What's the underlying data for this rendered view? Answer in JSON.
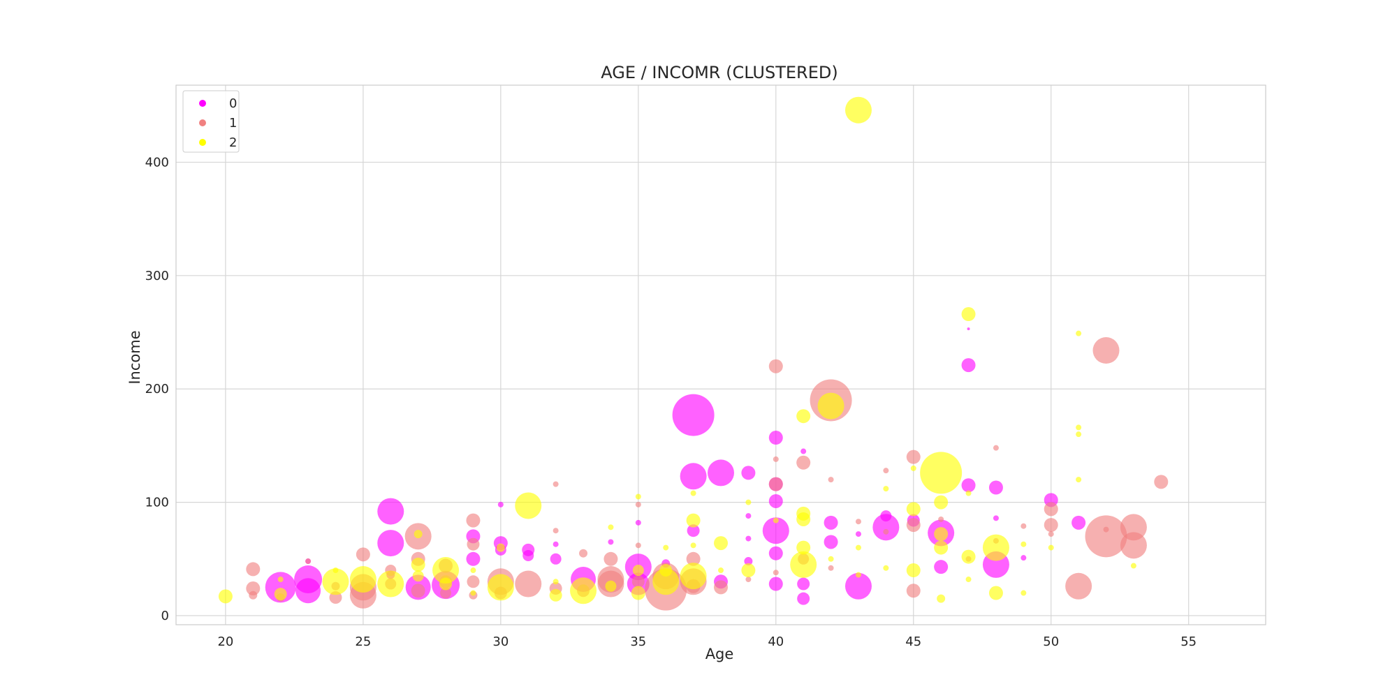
{
  "chart_data": {
    "type": "scatter",
    "title": "AGE / INCOMR (CLUSTERED)",
    "xlabel": "Age",
    "ylabel": "Income",
    "xlim": [
      18.2,
      57.8
    ],
    "ylim": [
      -8,
      468
    ],
    "xticks": [
      20,
      25,
      30,
      35,
      40,
      45,
      50,
      55
    ],
    "yticks": [
      0,
      100,
      200,
      300,
      400
    ],
    "grid": true,
    "legend_position": "top-left",
    "series": [
      {
        "name": "0",
        "color": "#ff00ff",
        "points": [
          {
            "x": 22,
            "y": 25,
            "size": 22
          },
          {
            "x": 23,
            "y": 32,
            "size": 20
          },
          {
            "x": 23,
            "y": 22,
            "size": 18
          },
          {
            "x": 23,
            "y": 48,
            "size": 4
          },
          {
            "x": 26,
            "y": 92,
            "size": 19
          },
          {
            "x": 26,
            "y": 64,
            "size": 19
          },
          {
            "x": 26,
            "y": 36,
            "size": 6
          },
          {
            "x": 27,
            "y": 25,
            "size": 18
          },
          {
            "x": 28,
            "y": 27,
            "size": 20
          },
          {
            "x": 29,
            "y": 70,
            "size": 10
          },
          {
            "x": 29,
            "y": 50,
            "size": 10
          },
          {
            "x": 30,
            "y": 98,
            "size": 4
          },
          {
            "x": 30,
            "y": 64,
            "size": 10
          },
          {
            "x": 30,
            "y": 58,
            "size": 8
          },
          {
            "x": 31,
            "y": 58,
            "size": 9
          },
          {
            "x": 31,
            "y": 53,
            "size": 8
          },
          {
            "x": 32,
            "y": 63,
            "size": 4
          },
          {
            "x": 32,
            "y": 50,
            "size": 8
          },
          {
            "x": 33,
            "y": 32,
            "size": 18
          },
          {
            "x": 34,
            "y": 65,
            "size": 4
          },
          {
            "x": 35,
            "y": 43,
            "size": 19
          },
          {
            "x": 35,
            "y": 82,
            "size": 4
          },
          {
            "x": 35,
            "y": 28,
            "size": 16
          },
          {
            "x": 36,
            "y": 46,
            "size": 6
          },
          {
            "x": 37,
            "y": 177,
            "size": 30
          },
          {
            "x": 37,
            "y": 123,
            "size": 19
          },
          {
            "x": 37,
            "y": 75,
            "size": 9
          },
          {
            "x": 38,
            "y": 126,
            "size": 19
          },
          {
            "x": 38,
            "y": 30,
            "size": 10
          },
          {
            "x": 39,
            "y": 126,
            "size": 10
          },
          {
            "x": 39,
            "y": 88,
            "size": 4
          },
          {
            "x": 39,
            "y": 68,
            "size": 4
          },
          {
            "x": 39,
            "y": 48,
            "size": 6
          },
          {
            "x": 40,
            "y": 157,
            "size": 10
          },
          {
            "x": 40,
            "y": 116,
            "size": 10
          },
          {
            "x": 40,
            "y": 101,
            "size": 10
          },
          {
            "x": 40,
            "y": 75,
            "size": 19
          },
          {
            "x": 40,
            "y": 55,
            "size": 10
          },
          {
            "x": 40,
            "y": 28,
            "size": 10
          },
          {
            "x": 41,
            "y": 145,
            "size": 4
          },
          {
            "x": 41,
            "y": 28,
            "size": 9
          },
          {
            "x": 41,
            "y": 15,
            "size": 9
          },
          {
            "x": 42,
            "y": 82,
            "size": 10
          },
          {
            "x": 42,
            "y": 65,
            "size": 10
          },
          {
            "x": 43,
            "y": 26,
            "size": 19
          },
          {
            "x": 43,
            "y": 72,
            "size": 4
          },
          {
            "x": 44,
            "y": 78,
            "size": 19
          },
          {
            "x": 44,
            "y": 88,
            "size": 8
          },
          {
            "x": 45,
            "y": 84,
            "size": 9
          },
          {
            "x": 46,
            "y": 73,
            "size": 19
          },
          {
            "x": 46,
            "y": 43,
            "size": 10
          },
          {
            "x": 47,
            "y": 221,
            "size": 10
          },
          {
            "x": 47,
            "y": 115,
            "size": 10
          },
          {
            "x": 47,
            "y": 253,
            "size": 2
          },
          {
            "x": 48,
            "y": 113,
            "size": 10
          },
          {
            "x": 48,
            "y": 45,
            "size": 19
          },
          {
            "x": 48,
            "y": 86,
            "size": 4
          },
          {
            "x": 49,
            "y": 51,
            "size": 4
          },
          {
            "x": 50,
            "y": 102,
            "size": 10
          },
          {
            "x": 51,
            "y": 82,
            "size": 10
          }
        ]
      },
      {
        "name": "1",
        "color": "#f08080",
        "points": [
          {
            "x": 21,
            "y": 41,
            "size": 10
          },
          {
            "x": 21,
            "y": 24,
            "size": 10
          },
          {
            "x": 21,
            "y": 18,
            "size": 6
          },
          {
            "x": 22,
            "y": 16,
            "size": 6
          },
          {
            "x": 23,
            "y": 48,
            "size": 4
          },
          {
            "x": 24,
            "y": 16,
            "size": 9
          },
          {
            "x": 24,
            "y": 26,
            "size": 6
          },
          {
            "x": 25,
            "y": 54,
            "size": 10
          },
          {
            "x": 25,
            "y": 25,
            "size": 19
          },
          {
            "x": 25,
            "y": 18,
            "size": 19
          },
          {
            "x": 26,
            "y": 40,
            "size": 8
          },
          {
            "x": 26,
            "y": 28,
            "size": 8
          },
          {
            "x": 27,
            "y": 70,
            "size": 19
          },
          {
            "x": 27,
            "y": 50,
            "size": 10
          },
          {
            "x": 27,
            "y": 22,
            "size": 10
          },
          {
            "x": 28,
            "y": 44,
            "size": 10
          },
          {
            "x": 28,
            "y": 30,
            "size": 9
          },
          {
            "x": 28,
            "y": 20,
            "size": 8
          },
          {
            "x": 29,
            "y": 84,
            "size": 10
          },
          {
            "x": 29,
            "y": 63,
            "size": 9
          },
          {
            "x": 29,
            "y": 30,
            "size": 9
          },
          {
            "x": 29,
            "y": 18,
            "size": 6
          },
          {
            "x": 30,
            "y": 30,
            "size": 19
          },
          {
            "x": 30,
            "y": 20,
            "size": 9
          },
          {
            "x": 31,
            "y": 28,
            "size": 19
          },
          {
            "x": 32,
            "y": 116,
            "size": 4
          },
          {
            "x": 32,
            "y": 75,
            "size": 4
          },
          {
            "x": 32,
            "y": 24,
            "size": 9
          },
          {
            "x": 33,
            "y": 55,
            "size": 6
          },
          {
            "x": 33,
            "y": 22,
            "size": 9
          },
          {
            "x": 34,
            "y": 50,
            "size": 10
          },
          {
            "x": 34,
            "y": 32,
            "size": 19
          },
          {
            "x": 34,
            "y": 28,
            "size": 19
          },
          {
            "x": 35,
            "y": 98,
            "size": 4
          },
          {
            "x": 35,
            "y": 62,
            "size": 4
          },
          {
            "x": 35,
            "y": 30,
            "size": 9
          },
          {
            "x": 36,
            "y": 23,
            "size": 30
          },
          {
            "x": 36,
            "y": 35,
            "size": 19
          },
          {
            "x": 37,
            "y": 50,
            "size": 10
          },
          {
            "x": 37,
            "y": 30,
            "size": 19
          },
          {
            "x": 37,
            "y": 26,
            "size": 10
          },
          {
            "x": 38,
            "y": 25,
            "size": 10
          },
          {
            "x": 39,
            "y": 32,
            "size": 4
          },
          {
            "x": 40,
            "y": 220,
            "size": 10
          },
          {
            "x": 40,
            "y": 138,
            "size": 4
          },
          {
            "x": 40,
            "y": 116,
            "size": 10
          },
          {
            "x": 40,
            "y": 38,
            "size": 4
          },
          {
            "x": 41,
            "y": 135,
            "size": 10
          },
          {
            "x": 41,
            "y": 50,
            "size": 8
          },
          {
            "x": 42,
            "y": 190,
            "size": 30
          },
          {
            "x": 42,
            "y": 120,
            "size": 4
          },
          {
            "x": 42,
            "y": 42,
            "size": 4
          },
          {
            "x": 43,
            "y": 83,
            "size": 4
          },
          {
            "x": 44,
            "y": 128,
            "size": 4
          },
          {
            "x": 44,
            "y": 74,
            "size": 4
          },
          {
            "x": 45,
            "y": 140,
            "size": 10
          },
          {
            "x": 45,
            "y": 80,
            "size": 10
          },
          {
            "x": 45,
            "y": 22,
            "size": 10
          },
          {
            "x": 46,
            "y": 85,
            "size": 4
          },
          {
            "x": 47,
            "y": 50,
            "size": 4
          },
          {
            "x": 48,
            "y": 148,
            "size": 4
          },
          {
            "x": 48,
            "y": 66,
            "size": 4
          },
          {
            "x": 49,
            "y": 79,
            "size": 4
          },
          {
            "x": 50,
            "y": 94,
            "size": 10
          },
          {
            "x": 50,
            "y": 80,
            "size": 10
          },
          {
            "x": 50,
            "y": 72,
            "size": 4
          },
          {
            "x": 51,
            "y": 26,
            "size": 19
          },
          {
            "x": 52,
            "y": 234,
            "size": 19
          },
          {
            "x": 52,
            "y": 70,
            "size": 30
          },
          {
            "x": 52,
            "y": 76,
            "size": 4
          },
          {
            "x": 53,
            "y": 78,
            "size": 19
          },
          {
            "x": 53,
            "y": 62,
            "size": 19
          },
          {
            "x": 54,
            "y": 118,
            "size": 10
          }
        ]
      },
      {
        "name": "2",
        "color": "#ffff00",
        "points": [
          {
            "x": 20,
            "y": 17,
            "size": 10
          },
          {
            "x": 22,
            "y": 19,
            "size": 9
          },
          {
            "x": 22,
            "y": 32,
            "size": 4
          },
          {
            "x": 24,
            "y": 30,
            "size": 19
          },
          {
            "x": 24,
            "y": 40,
            "size": 4
          },
          {
            "x": 25,
            "y": 32,
            "size": 19
          },
          {
            "x": 26,
            "y": 28,
            "size": 19
          },
          {
            "x": 27,
            "y": 45,
            "size": 10
          },
          {
            "x": 27,
            "y": 72,
            "size": 6
          },
          {
            "x": 27,
            "y": 35,
            "size": 8
          },
          {
            "x": 28,
            "y": 40,
            "size": 19
          },
          {
            "x": 28,
            "y": 28,
            "size": 9
          },
          {
            "x": 29,
            "y": 40,
            "size": 4
          },
          {
            "x": 29,
            "y": 20,
            "size": 4
          },
          {
            "x": 30,
            "y": 25,
            "size": 19
          },
          {
            "x": 30,
            "y": 60,
            "size": 6
          },
          {
            "x": 31,
            "y": 97,
            "size": 19
          },
          {
            "x": 32,
            "y": 18,
            "size": 9
          },
          {
            "x": 32,
            "y": 30,
            "size": 4
          },
          {
            "x": 33,
            "y": 22,
            "size": 19
          },
          {
            "x": 34,
            "y": 78,
            "size": 4
          },
          {
            "x": 34,
            "y": 26,
            "size": 8
          },
          {
            "x": 35,
            "y": 105,
            "size": 4
          },
          {
            "x": 35,
            "y": 40,
            "size": 8
          },
          {
            "x": 35,
            "y": 20,
            "size": 10
          },
          {
            "x": 36,
            "y": 60,
            "size": 4
          },
          {
            "x": 36,
            "y": 40,
            "size": 9
          },
          {
            "x": 36,
            "y": 30,
            "size": 19
          },
          {
            "x": 37,
            "y": 108,
            "size": 4
          },
          {
            "x": 37,
            "y": 84,
            "size": 10
          },
          {
            "x": 37,
            "y": 62,
            "size": 4
          },
          {
            "x": 37,
            "y": 35,
            "size": 19
          },
          {
            "x": 38,
            "y": 64,
            "size": 10
          },
          {
            "x": 38,
            "y": 40,
            "size": 4
          },
          {
            "x": 39,
            "y": 40,
            "size": 10
          },
          {
            "x": 39,
            "y": 100,
            "size": 4
          },
          {
            "x": 40,
            "y": 84,
            "size": 4
          },
          {
            "x": 41,
            "y": 176,
            "size": 10
          },
          {
            "x": 41,
            "y": 90,
            "size": 10
          },
          {
            "x": 41,
            "y": 85,
            "size": 10
          },
          {
            "x": 41,
            "y": 60,
            "size": 10
          },
          {
            "x": 41,
            "y": 45,
            "size": 19
          },
          {
            "x": 42,
            "y": 185,
            "size": 19
          },
          {
            "x": 42,
            "y": 50,
            "size": 4
          },
          {
            "x": 43,
            "y": 446,
            "size": 19
          },
          {
            "x": 43,
            "y": 60,
            "size": 4
          },
          {
            "x": 43,
            "y": 36,
            "size": 4
          },
          {
            "x": 44,
            "y": 112,
            "size": 4
          },
          {
            "x": 44,
            "y": 42,
            "size": 4
          },
          {
            "x": 45,
            "y": 94,
            "size": 10
          },
          {
            "x": 45,
            "y": 40,
            "size": 10
          },
          {
            "x": 45,
            "y": 130,
            "size": 4
          },
          {
            "x": 46,
            "y": 126,
            "size": 30
          },
          {
            "x": 46,
            "y": 100,
            "size": 10
          },
          {
            "x": 46,
            "y": 72,
            "size": 10
          },
          {
            "x": 46,
            "y": 60,
            "size": 10
          },
          {
            "x": 46,
            "y": 15,
            "size": 6
          },
          {
            "x": 47,
            "y": 266,
            "size": 10
          },
          {
            "x": 47,
            "y": 108,
            "size": 4
          },
          {
            "x": 47,
            "y": 52,
            "size": 10
          },
          {
            "x": 47,
            "y": 32,
            "size": 4
          },
          {
            "x": 48,
            "y": 60,
            "size": 19
          },
          {
            "x": 48,
            "y": 20,
            "size": 10
          },
          {
            "x": 49,
            "y": 63,
            "size": 4
          },
          {
            "x": 49,
            "y": 20,
            "size": 4
          },
          {
            "x": 50,
            "y": 60,
            "size": 4
          },
          {
            "x": 51,
            "y": 249,
            "size": 4
          },
          {
            "x": 51,
            "y": 166,
            "size": 4
          },
          {
            "x": 51,
            "y": 160,
            "size": 4
          },
          {
            "x": 51,
            "y": 120,
            "size": 4
          },
          {
            "x": 53,
            "y": 44,
            "size": 4
          }
        ]
      }
    ]
  }
}
